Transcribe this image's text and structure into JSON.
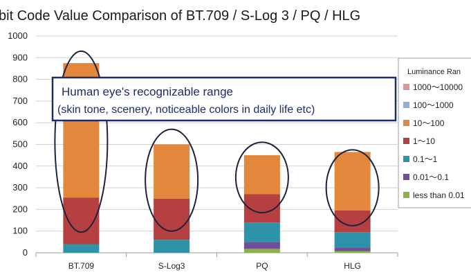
{
  "chart_data": {
    "type": "bar",
    "stacked": true,
    "title": "bit Code Value Comparison of BT.709 / S-Log 3 / PQ / HLG",
    "xlabel": "",
    "ylabel": "",
    "ylim": [
      0,
      1000
    ],
    "yticks": [
      0,
      100,
      200,
      300,
      400,
      500,
      600,
      700,
      800,
      900,
      1000
    ],
    "grid": true,
    "legend": {
      "title": "Luminance Ran",
      "position": "right"
    },
    "categories": [
      "BT.709",
      "S-Log3",
      "PQ",
      "HLG"
    ],
    "series": [
      {
        "name": "less than 0.01",
        "color": "#8db14a",
        "values": [
          0,
          0,
          18,
          8
        ]
      },
      {
        "name": "0.01～0.1",
        "color": "#6f4f97",
        "values": [
          0,
          0,
          32,
          17
        ]
      },
      {
        "name": "0.1～1",
        "color": "#2e93a8",
        "values": [
          40,
          60,
          90,
          70
        ]
      },
      {
        "name": "1～10",
        "color": "#b5403f",
        "values": [
          215,
          190,
          130,
          100
        ]
      },
      {
        "name": "10～100",
        "color": "#e2873b",
        "values": [
          620,
          250,
          180,
          270
        ]
      },
      {
        "name": "100～1000",
        "color": "#93aed6",
        "values": [
          0,
          0,
          0,
          0
        ]
      },
      {
        "name": "1000～10000",
        "color": "#d99795",
        "values": [
          0,
          0,
          0,
          0
        ]
      }
    ],
    "annotation": {
      "line1": "Human eye's recognizable range",
      "line2": "(skin tone, scenery, noticeable colors in daily life etc)"
    }
  }
}
